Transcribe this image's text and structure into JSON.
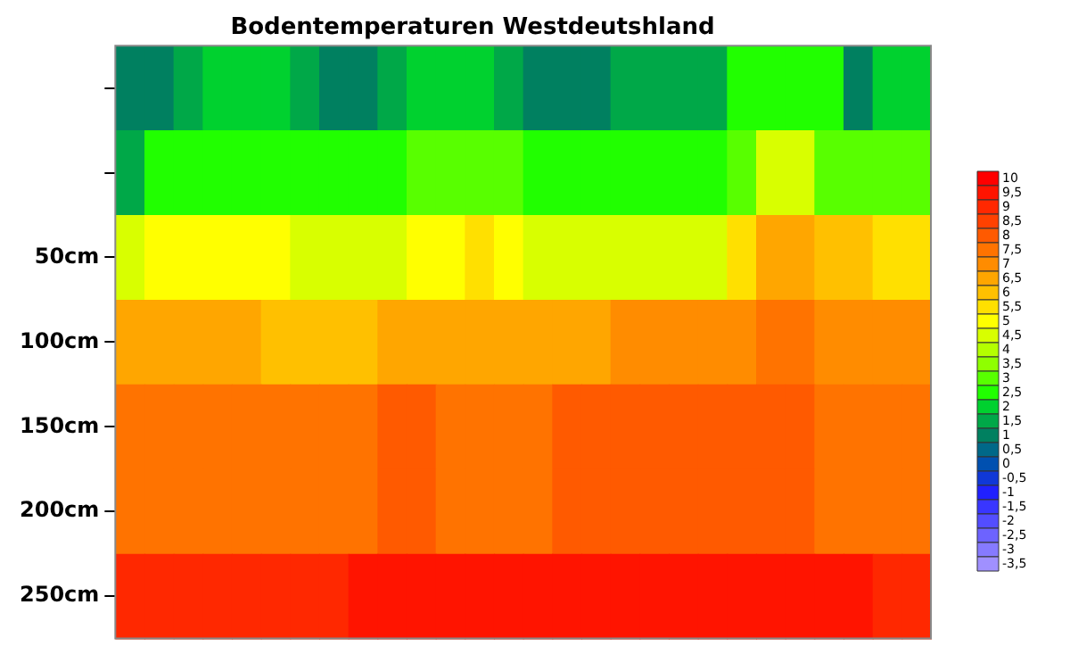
{
  "chart_data": {
    "type": "heatmap",
    "title": "Bodentemperaturen Westdeutshland",
    "categories": [
      null,
      null,
      null,
      null,
      null,
      null,
      null,
      null,
      null,
      null,
      null,
      null,
      null,
      null,
      null,
      null,
      null,
      null,
      null,
      null,
      null,
      null,
      null,
      null,
      null,
      null,
      null,
      null
    ],
    "y_categories": [
      null,
      null,
      "50cm",
      "100cm",
      "150cm",
      "200cm",
      "250cm"
    ],
    "cells": [
      [
        1,
        1,
        1.5,
        2,
        2,
        2,
        1.5,
        1,
        1,
        1.5,
        2,
        2,
        2,
        1.5,
        1,
        1,
        1,
        1.5,
        1.5,
        1.5,
        1.5,
        2.5,
        2.5,
        2.5,
        2.5,
        1,
        2,
        2
      ],
      [
        1.5,
        2.5,
        2.5,
        2.5,
        2.5,
        2.5,
        2.5,
        2.5,
        2.5,
        2.5,
        3,
        3,
        3,
        3,
        2.5,
        2.5,
        2.5,
        2.5,
        2.5,
        2.5,
        2.5,
        3,
        4.5,
        4.5,
        3,
        3,
        3,
        3
      ],
      [
        4.5,
        5,
        5,
        5,
        5,
        5,
        4.5,
        4.5,
        4.5,
        4.5,
        5,
        5,
        5.5,
        5,
        4.5,
        4.5,
        4.5,
        4.5,
        4.5,
        4.5,
        4.5,
        5.5,
        6.5,
        6.5,
        6,
        6,
        5.5,
        5.5
      ],
      [
        6.5,
        6.5,
        6.5,
        6.5,
        6.5,
        6,
        6,
        6,
        6,
        6.5,
        6.5,
        6.5,
        6.5,
        6.5,
        6.5,
        6.5,
        6.5,
        7,
        7,
        7,
        7,
        7,
        7.5,
        7.5,
        7,
        7,
        7,
        7
      ],
      [
        7.5,
        7.5,
        7.5,
        7.5,
        7.5,
        7.5,
        7.5,
        7.5,
        7.5,
        8,
        8,
        7.5,
        7.5,
        7.5,
        7.5,
        8,
        8,
        8,
        8,
        8,
        8,
        8,
        8,
        8,
        7.5,
        7.5,
        7.5,
        7.5
      ],
      [
        7.5,
        7.5,
        7.5,
        7.5,
        7.5,
        7.5,
        7.5,
        7.5,
        7.5,
        8,
        8,
        7.5,
        7.5,
        7.5,
        7.5,
        8,
        8,
        8,
        8,
        8,
        8,
        8,
        8,
        8,
        7.5,
        7.5,
        7.5,
        7.5
      ],
      [
        9,
        9,
        9,
        9,
        9,
        9,
        9,
        9,
        9.5,
        9.5,
        9.5,
        9.5,
        9.5,
        9.5,
        9.5,
        9.5,
        9.5,
        9.5,
        9.5,
        9.5,
        9.5,
        9.5,
        9.5,
        9.5,
        9.5,
        9.5,
        9,
        9
      ]
    ],
    "clim": [
      -3.5,
      10
    ],
    "cticks": [
      {
        "value": 10,
        "label": "10"
      },
      {
        "value": 9.5,
        "label": "9,5"
      },
      {
        "value": 9,
        "label": "9"
      },
      {
        "value": 8.5,
        "label": "8,5"
      },
      {
        "value": 8,
        "label": "8"
      },
      {
        "value": 7.5,
        "label": "7,5"
      },
      {
        "value": 7,
        "label": "7"
      },
      {
        "value": 6.5,
        "label": "6,5"
      },
      {
        "value": 6,
        "label": "6"
      },
      {
        "value": 5.5,
        "label": "5,5"
      },
      {
        "value": 5,
        "label": "5"
      },
      {
        "value": 4.5,
        "label": "4,5"
      },
      {
        "value": 4,
        "label": "4"
      },
      {
        "value": 3.5,
        "label": "3,5"
      },
      {
        "value": 3,
        "label": "3"
      },
      {
        "value": 2.5,
        "label": "2,5"
      },
      {
        "value": 2,
        "label": "2"
      },
      {
        "value": 1.5,
        "label": "1,5"
      },
      {
        "value": 1,
        "label": "1"
      },
      {
        "value": 0.5,
        "label": "0,5"
      },
      {
        "value": 0,
        "label": "0"
      },
      {
        "value": -0.5,
        "label": "-0,5"
      },
      {
        "value": -1,
        "label": "-1"
      },
      {
        "value": -1.5,
        "label": "-1,5"
      },
      {
        "value": -2,
        "label": "-2"
      },
      {
        "value": -2.5,
        "label": "-2,5"
      },
      {
        "value": -3,
        "label": "-3"
      },
      {
        "value": -3.5,
        "label": "-3,5"
      }
    ]
  }
}
